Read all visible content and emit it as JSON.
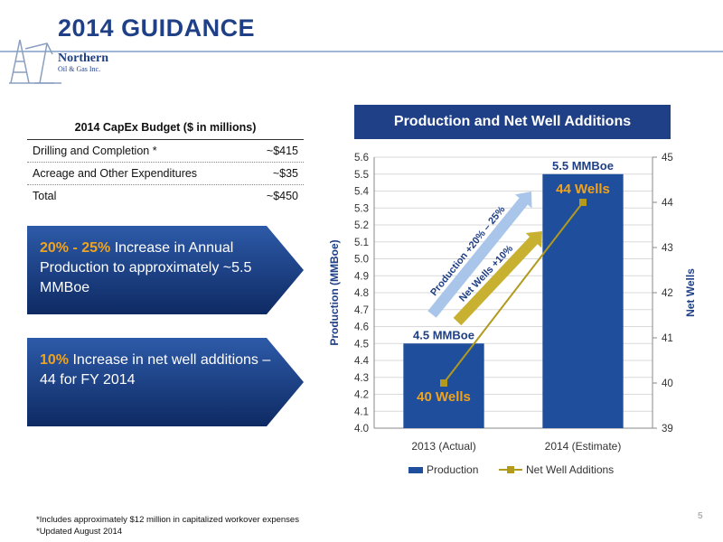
{
  "header": {
    "title": "2014 GUIDANCE"
  },
  "logo": {
    "name": "Northern",
    "subtitle": "Oil & Gas Inc."
  },
  "capex_table": {
    "header": "2014 CapEx Budget ($ in millions)",
    "rows": [
      {
        "label": "Drilling and Completion *",
        "value": "~$415"
      },
      {
        "label": "Acreage and Other Expenditures",
        "value": "~$35"
      },
      {
        "label": "Total",
        "value": "~$450"
      }
    ]
  },
  "callouts": [
    {
      "highlight": "20% - 25%",
      "text": " Increase in Annual Production to approximately ~5.5 MMBoe"
    },
    {
      "highlight": "10%",
      "text": " Increase in net well additions – 44 for FY 2014"
    }
  ],
  "chart_title": "Production and Net Well Additions",
  "chart_data": {
    "type": "bar",
    "categories": [
      "2013 (Actual)",
      "2014 (Estimate)"
    ],
    "series": [
      {
        "name": "Production",
        "kind": "bar",
        "axis": "left",
        "values": [
          4.5,
          5.5
        ],
        "color": "#1f4e9c"
      },
      {
        "name": "Net Well Additions",
        "kind": "line",
        "axis": "right",
        "values": [
          40,
          44
        ],
        "color": "#b29a1c"
      }
    ],
    "ylabel": "Production (MMBoe)",
    "y2label": "Net Wells",
    "ylim": [
      4.0,
      5.6
    ],
    "y2lim": [
      39,
      45
    ],
    "yticks": [
      "4.0",
      "4.1",
      "4.2",
      "4.3",
      "4.4",
      "4.5",
      "4.6",
      "4.7",
      "4.8",
      "4.9",
      "5.0",
      "5.1",
      "5.2",
      "5.3",
      "5.4",
      "5.5",
      "5.6"
    ],
    "y2ticks": [
      "39",
      "40",
      "41",
      "42",
      "43",
      "44",
      "45"
    ],
    "bar_labels": [
      "4.5 MMBoe",
      "5.5 MMBoe"
    ],
    "line_labels": [
      "40 Wells",
      "44 Wells"
    ],
    "arrow_labels": [
      "Production +20% – 25%",
      "Net Wells +10%"
    ],
    "grid": true,
    "legend": "bottom"
  },
  "footnotes": [
    "*Includes approximately $12 million in capitalized workover expenses",
    "*Updated August 2014"
  ],
  "page_number": "5",
  "colors": {
    "brand": "#1f3f86",
    "accent": "#f0a31c",
    "line": "#b29a1c",
    "bar": "#1f4e9c"
  }
}
